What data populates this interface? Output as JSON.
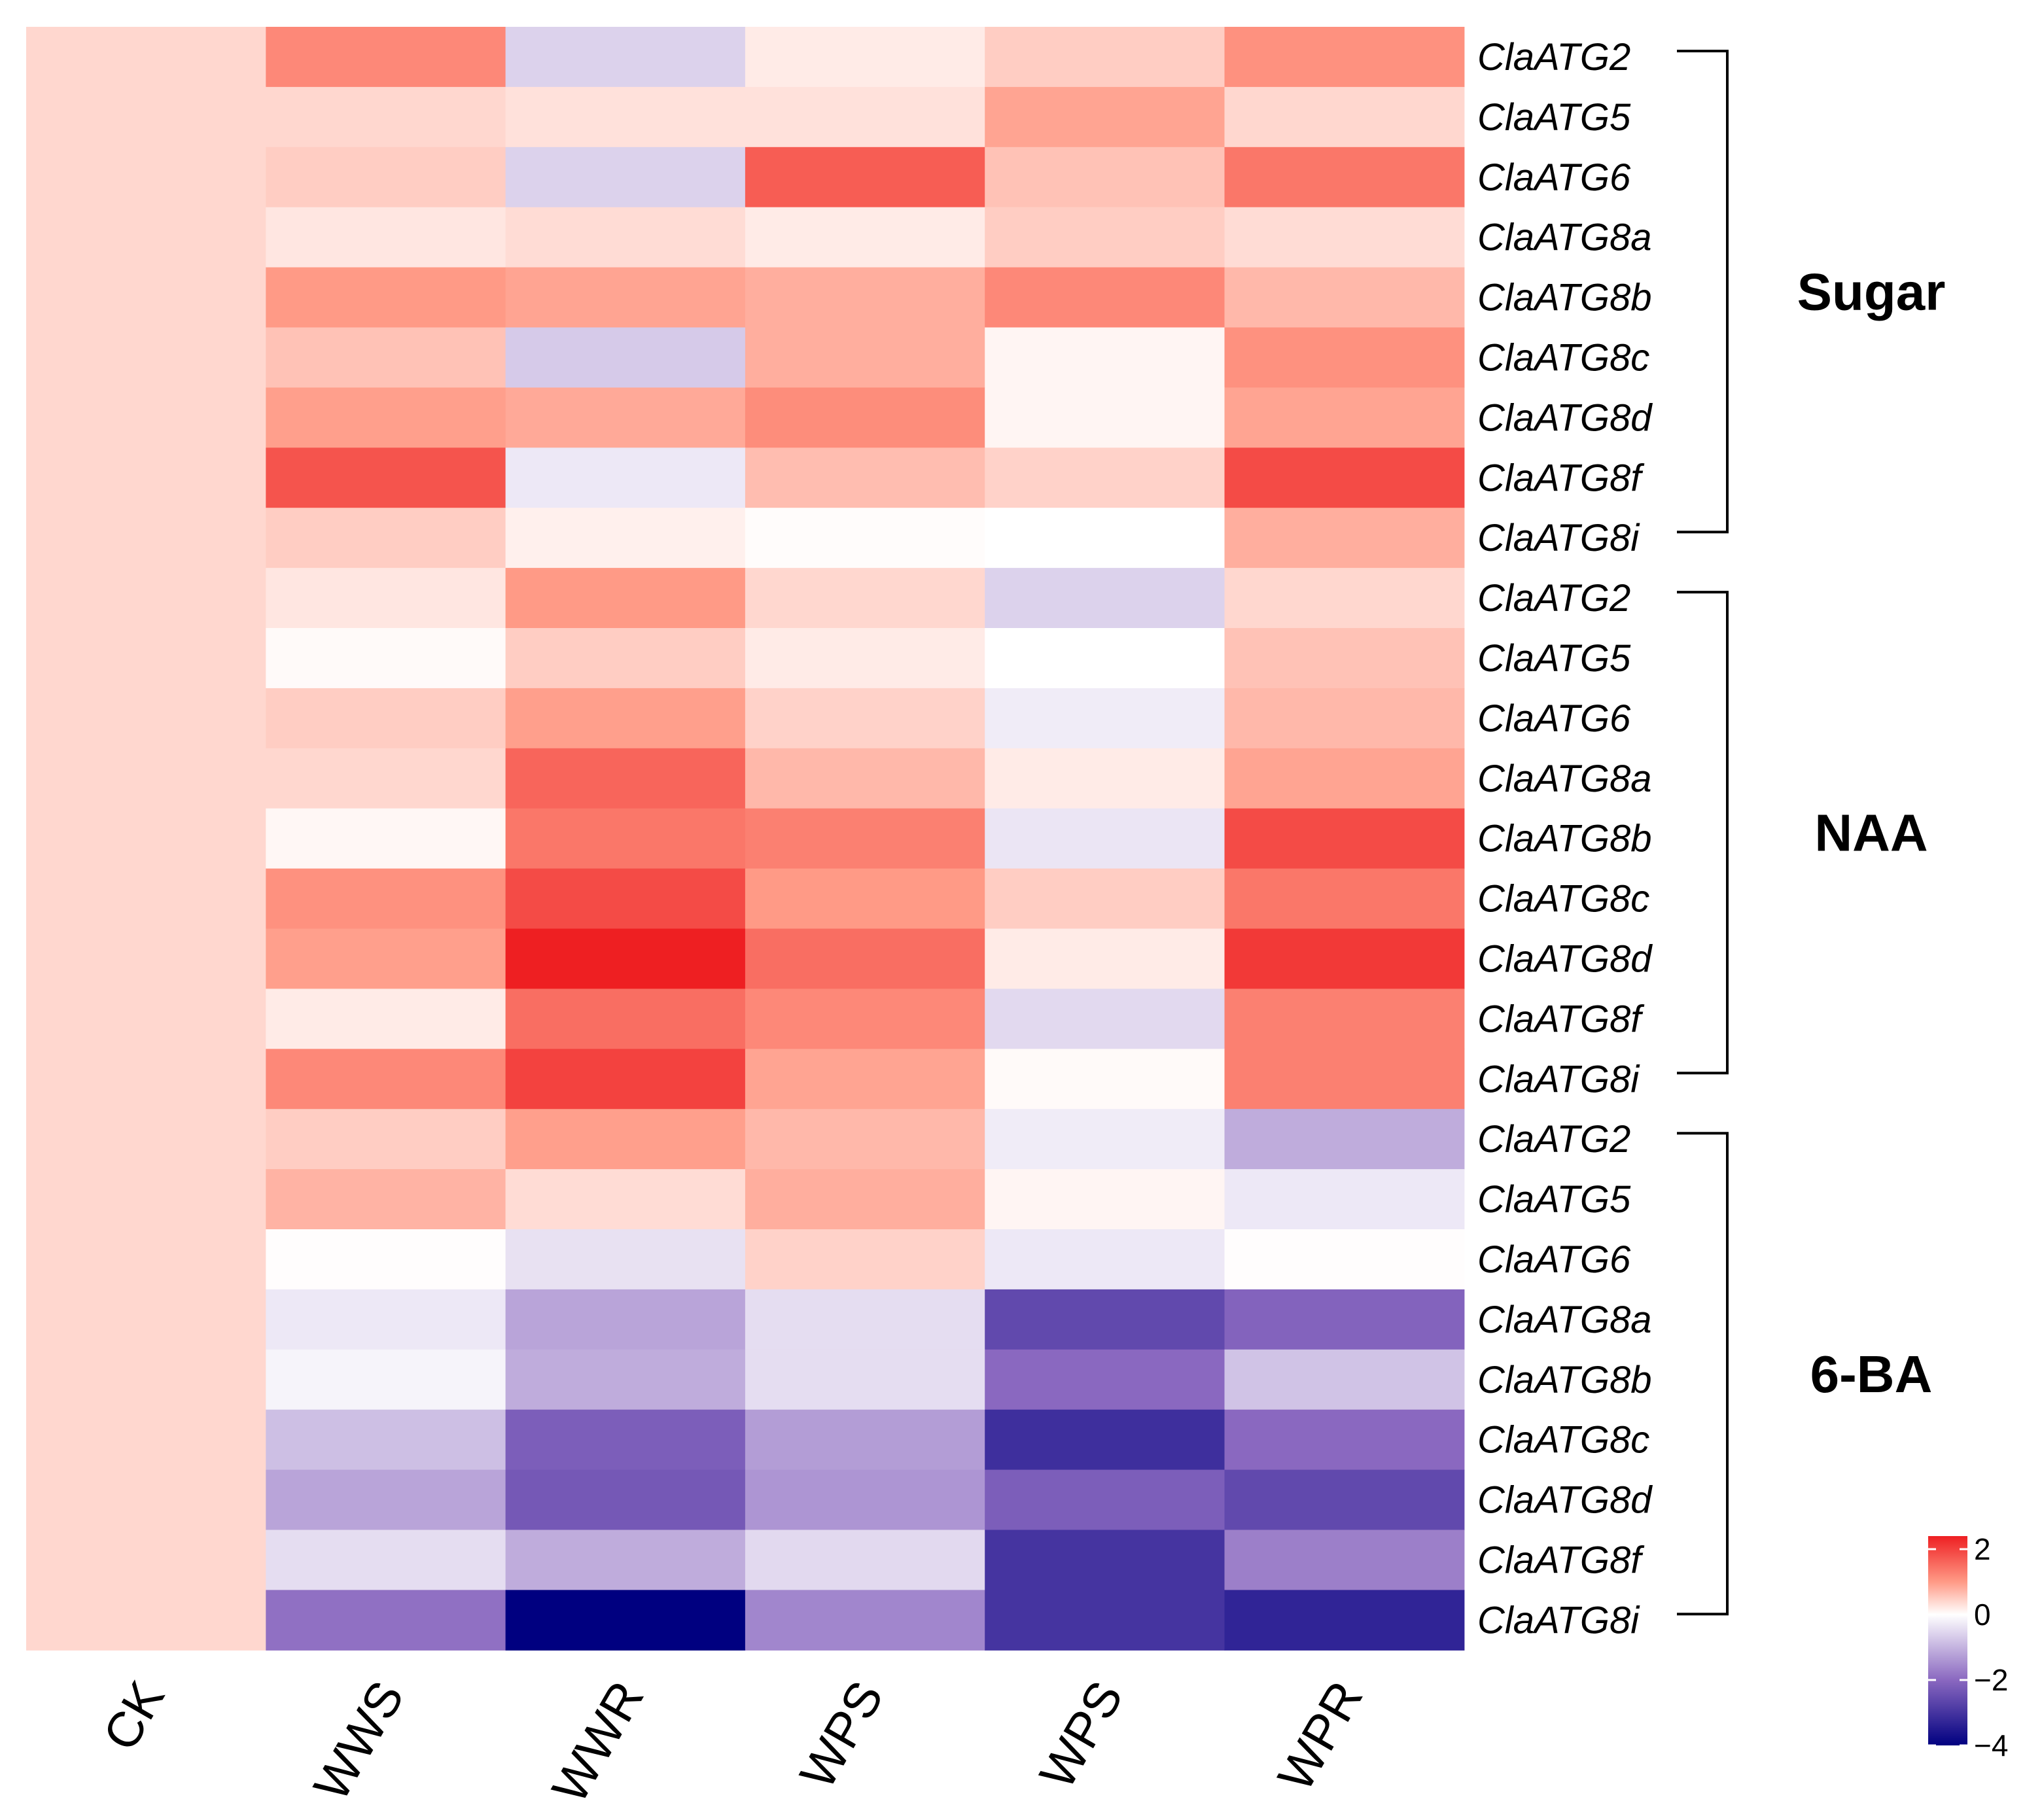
{
  "chart_data": {
    "type": "heatmap",
    "columns": [
      "CK",
      "WWS",
      "WWR",
      "WPS",
      "WPS",
      "WPR"
    ],
    "groups": [
      {
        "name": "Sugar",
        "rows": [
          "ClaATG2",
          "ClaATG5",
          "ClaATG6",
          "ClaATG8a",
          "ClaATG8b",
          "ClaATG8c",
          "ClaATG8d",
          "ClaATG8f",
          "ClaATG8i"
        ],
        "values": [
          [
            0.4,
            1.2,
            -0.6,
            0.2,
            0.5,
            1.1
          ],
          [
            0.4,
            0.4,
            0.3,
            0.3,
            0.9,
            0.4
          ],
          [
            0.4,
            0.5,
            -0.6,
            1.7,
            0.6,
            1.4
          ],
          [
            0.4,
            0.25,
            0.35,
            0.2,
            0.5,
            0.35
          ],
          [
            0.4,
            1.0,
            0.9,
            0.8,
            1.2,
            0.7
          ],
          [
            0.4,
            0.6,
            -0.7,
            0.8,
            0.1,
            1.1
          ],
          [
            0.4,
            0.95,
            0.85,
            1.15,
            0.1,
            0.9
          ],
          [
            0.4,
            1.8,
            -0.3,
            0.65,
            0.45,
            1.9
          ],
          [
            0.4,
            0.5,
            0.15,
            0.03,
            0.0,
            0.8
          ]
        ]
      },
      {
        "name": "NAA",
        "rows": [
          "ClaATG2",
          "ClaATG5",
          "ClaATG6",
          "ClaATG8a",
          "ClaATG8b",
          "ClaATG8c",
          "ClaATG8d",
          "ClaATG8f",
          "ClaATG8i"
        ],
        "values": [
          [
            0.4,
            0.25,
            1.0,
            0.4,
            -0.6,
            0.4
          ],
          [
            0.4,
            0.05,
            0.5,
            0.2,
            0.0,
            0.6
          ],
          [
            0.4,
            0.5,
            0.95,
            0.45,
            -0.25,
            0.7
          ],
          [
            0.4,
            0.4,
            1.6,
            0.7,
            0.2,
            0.9
          ],
          [
            0.4,
            0.08,
            1.4,
            1.3,
            -0.35,
            1.9
          ],
          [
            0.4,
            1.1,
            1.9,
            1.0,
            0.5,
            1.4
          ],
          [
            0.4,
            0.95,
            2.4,
            1.5,
            0.2,
            2.1
          ],
          [
            0.4,
            0.2,
            1.5,
            1.2,
            -0.5,
            1.3
          ],
          [
            0.4,
            1.2,
            2.0,
            0.9,
            0.05,
            1.3
          ]
        ]
      },
      {
        "name": "6-BA",
        "rows": [
          "ClaATG2",
          "ClaATG5",
          "ClaATG6",
          "ClaATG8a",
          "ClaATG8b",
          "ClaATG8c",
          "ClaATG8d",
          "ClaATG8f",
          "ClaATG8i"
        ],
        "values": [
          [
            0.4,
            0.5,
            0.95,
            0.7,
            -0.25,
            -1.1
          ],
          [
            0.4,
            0.75,
            0.35,
            0.8,
            0.1,
            -0.3
          ],
          [
            0.4,
            0.02,
            -0.4,
            0.45,
            -0.3,
            0.02
          ],
          [
            0.4,
            -0.3,
            -1.2,
            -0.45,
            -2.6,
            -2.1
          ],
          [
            0.4,
            -0.15,
            -1.1,
            -0.45,
            -2.0,
            -0.8
          ],
          [
            0.4,
            -0.85,
            -2.2,
            -1.3,
            -3.1,
            -2.0
          ],
          [
            0.4,
            -1.2,
            -2.3,
            -1.4,
            -2.2,
            -2.6
          ],
          [
            0.4,
            -0.45,
            -1.1,
            -0.5,
            -3.0,
            -1.7
          ],
          [
            0.4,
            -1.9,
            -4.0,
            -1.6,
            -3.0,
            -3.3
          ]
        ]
      }
    ],
    "color_scale": {
      "min": -4,
      "max": 2.4,
      "stops": [
        {
          "value": -4,
          "color": "#000080"
        },
        {
          "value": -2,
          "color": "#8a68c0"
        },
        {
          "value": 0,
          "color": "#ffffff"
        },
        {
          "value": 1,
          "color": "#ff9a86"
        },
        {
          "value": 2.4,
          "color": "#ee1f22"
        }
      ]
    },
    "legend": {
      "ticks": [
        {
          "value": 2,
          "label": "2"
        },
        {
          "value": 0,
          "label": "0"
        },
        {
          "value": -2,
          "label": "−2"
        },
        {
          "value": -4,
          "label": "−4"
        }
      ]
    }
  }
}
